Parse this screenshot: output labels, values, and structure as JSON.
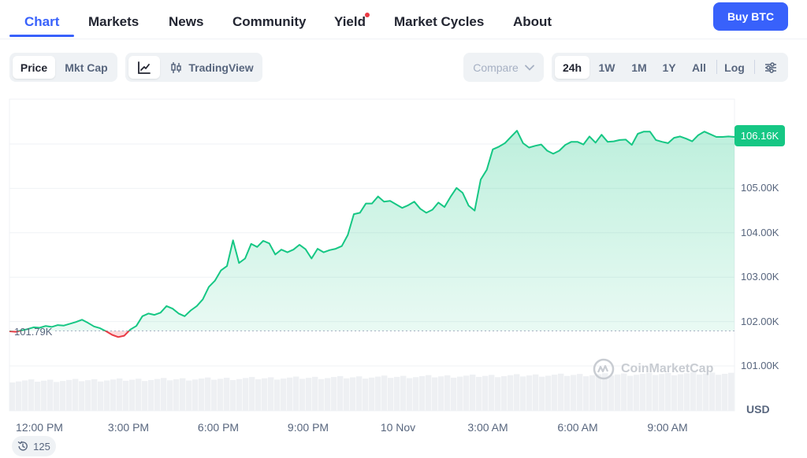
{
  "nav": {
    "tabs": [
      {
        "label": "Chart",
        "active": true
      },
      {
        "label": "Markets"
      },
      {
        "label": "News"
      },
      {
        "label": "Community"
      },
      {
        "label": "Yield",
        "badge": "red-dot"
      },
      {
        "label": "Market Cycles"
      },
      {
        "label": "About"
      }
    ],
    "buy_label": "Buy BTC"
  },
  "toolbar": {
    "metric_tabs": [
      "Price",
      "Mkt Cap"
    ],
    "active_metric": "Price",
    "line_chart_icon": "line-chart-icon",
    "candle_icon": "candlestick-icon",
    "tradingview_label": "TradingView",
    "compare_label": "Compare",
    "ranges": [
      "24h",
      "1W",
      "1M",
      "1Y",
      "All"
    ],
    "active_range": "24h",
    "log_label": "Log",
    "settings_icon": "sliders-icon"
  },
  "chart_data": {
    "type": "area",
    "x_ticks": [
      "12:00 PM",
      "3:00 PM",
      "6:00 PM",
      "9:00 PM",
      "10 Nov",
      "3:00 AM",
      "6:00 AM",
      "9:00 AM"
    ],
    "y_ticks": [
      "105.00K",
      "104.00K",
      "103.00K",
      "102.00K",
      "101.00K"
    ],
    "y_unit": "USD",
    "ylim": [
      100800,
      106800
    ],
    "current_price_label": "106.16K",
    "current_price": 106160,
    "baseline_label": "101.79K",
    "baseline": 101790,
    "x_hours_since_start": [
      0.0,
      0.2,
      0.4,
      0.6,
      0.8,
      1.0,
      1.2,
      1.4,
      1.6,
      1.8,
      2.0,
      2.2,
      2.4,
      2.6,
      2.8,
      3.0,
      3.2,
      3.4,
      3.6,
      3.8,
      4.0,
      4.2,
      4.4,
      4.6,
      4.8,
      5.0,
      5.2,
      5.4,
      5.6,
      5.8,
      6.0,
      6.2,
      6.4,
      6.6,
      6.8,
      7.0,
      7.2,
      7.4,
      7.6,
      7.8,
      8.0,
      8.2,
      8.4,
      8.6,
      8.8,
      9.0,
      9.2,
      9.4,
      9.6,
      9.8,
      10.0,
      10.2,
      10.4,
      10.6,
      10.8,
      11.0,
      11.2,
      11.4,
      11.6,
      11.8,
      12.0,
      12.2,
      12.4,
      12.6,
      12.8,
      13.0,
      13.2,
      13.4,
      13.6,
      13.8,
      14.0,
      14.2,
      14.4,
      14.6,
      14.8,
      15.0,
      15.2,
      15.4,
      15.6,
      15.8,
      16.0,
      16.2,
      16.4,
      16.6,
      16.8,
      17.0,
      17.2,
      17.4,
      17.6,
      17.8,
      18.0,
      18.2,
      18.4,
      18.6,
      18.8,
      19.0,
      19.2,
      19.4,
      19.6,
      19.8,
      20.0,
      20.2,
      20.4,
      20.6,
      20.8,
      21.0,
      21.2,
      21.4,
      21.6,
      21.8,
      22.0,
      22.2,
      22.4,
      22.6,
      22.8,
      23.0,
      23.2,
      23.4,
      23.6,
      23.8,
      24.0
    ],
    "prices": [
      101780,
      101770,
      101800,
      101830,
      101870,
      101860,
      101900,
      101880,
      101920,
      101910,
      101950,
      101990,
      102040,
      101970,
      101890,
      101850,
      101780,
      101700,
      101650,
      101680,
      101820,
      101900,
      102120,
      102180,
      102150,
      102200,
      102350,
      102290,
      102180,
      102120,
      102250,
      102350,
      102500,
      102780,
      102920,
      103150,
      103250,
      103830,
      103320,
      103420,
      103750,
      103680,
      103820,
      103760,
      103510,
      103620,
      103560,
      103620,
      103730,
      103630,
      103420,
      103640,
      103560,
      103610,
      103640,
      103700,
      103950,
      104420,
      104450,
      104660,
      104660,
      104820,
      104700,
      104720,
      104640,
      104560,
      104620,
      104700,
      104540,
      104450,
      104520,
      104680,
      104580,
      104810,
      105010,
      104900,
      104610,
      104500,
      105200,
      105420,
      105880,
      105940,
      106020,
      106160,
      106300,
      106020,
      105920,
      105960,
      105990,
      105850,
      105780,
      105850,
      105980,
      106050,
      106050,
      105990,
      106170,
      106030,
      106210,
      106050,
      106060,
      106090,
      106100,
      105980,
      106230,
      106280,
      106280,
      106090,
      106050,
      106020,
      106140,
      106170,
      106120,
      106060,
      106200,
      106280,
      106220,
      106160,
      106160,
      106170,
      106160
    ]
  },
  "watermark": "CoinMarketCap",
  "history_count": "125",
  "colors": {
    "accent": "#3861fb",
    "up": "#16c784",
    "down": "#ea3943",
    "axis_text": "#58667e",
    "grid": "#eff2f5"
  }
}
